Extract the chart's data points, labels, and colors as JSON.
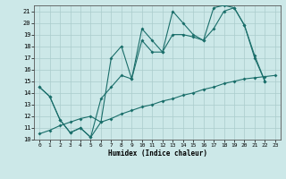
{
  "xlabel": "Humidex (Indice chaleur)",
  "background_color": "#cce8e8",
  "grid_color": "#aacccc",
  "line_color": "#1a6e6a",
  "xlim": [
    -0.5,
    23.5
  ],
  "ylim": [
    10,
    21.5
  ],
  "yticks": [
    10,
    11,
    12,
    13,
    14,
    15,
    16,
    17,
    18,
    19,
    20,
    21
  ],
  "xticks": [
    0,
    1,
    2,
    3,
    4,
    5,
    6,
    7,
    8,
    9,
    10,
    11,
    12,
    13,
    14,
    15,
    16,
    17,
    18,
    19,
    20,
    21,
    22,
    23
  ],
  "line_top_x": [
    0,
    1,
    2,
    3,
    4,
    5,
    6,
    7,
    8,
    9,
    10,
    11,
    12,
    13,
    14,
    15,
    16,
    17,
    18,
    19,
    20,
    21,
    22
  ],
  "line_top_y": [
    14.5,
    13.7,
    11.7,
    10.6,
    11.0,
    10.2,
    11.5,
    17.0,
    18.0,
    15.2,
    19.5,
    18.5,
    17.5,
    21.0,
    20.0,
    19.0,
    18.5,
    21.3,
    21.5,
    21.3,
    19.8,
    17.2,
    15.0
  ],
  "line_mid_x": [
    0,
    1,
    2,
    3,
    4,
    5,
    6,
    7,
    8,
    9,
    10,
    11,
    12,
    13,
    14,
    15,
    16,
    17,
    18,
    19,
    20,
    21,
    22
  ],
  "line_mid_y": [
    14.5,
    13.7,
    11.7,
    10.6,
    11.0,
    10.2,
    13.5,
    14.5,
    15.5,
    15.2,
    18.5,
    17.5,
    17.5,
    19.0,
    19.0,
    18.8,
    18.5,
    19.5,
    21.0,
    21.3,
    19.8,
    17.0,
    15.0
  ],
  "line_bot_x": [
    0,
    1,
    2,
    3,
    4,
    5,
    6,
    7,
    8,
    9,
    10,
    11,
    12,
    13,
    14,
    15,
    16,
    17,
    18,
    19,
    20,
    21,
    22,
    23
  ],
  "line_bot_y": [
    10.5,
    10.8,
    11.2,
    11.5,
    11.8,
    12.0,
    11.5,
    11.8,
    12.2,
    12.5,
    12.8,
    13.0,
    13.3,
    13.5,
    13.8,
    14.0,
    14.3,
    14.5,
    14.8,
    15.0,
    15.2,
    15.3,
    15.4,
    15.5
  ]
}
